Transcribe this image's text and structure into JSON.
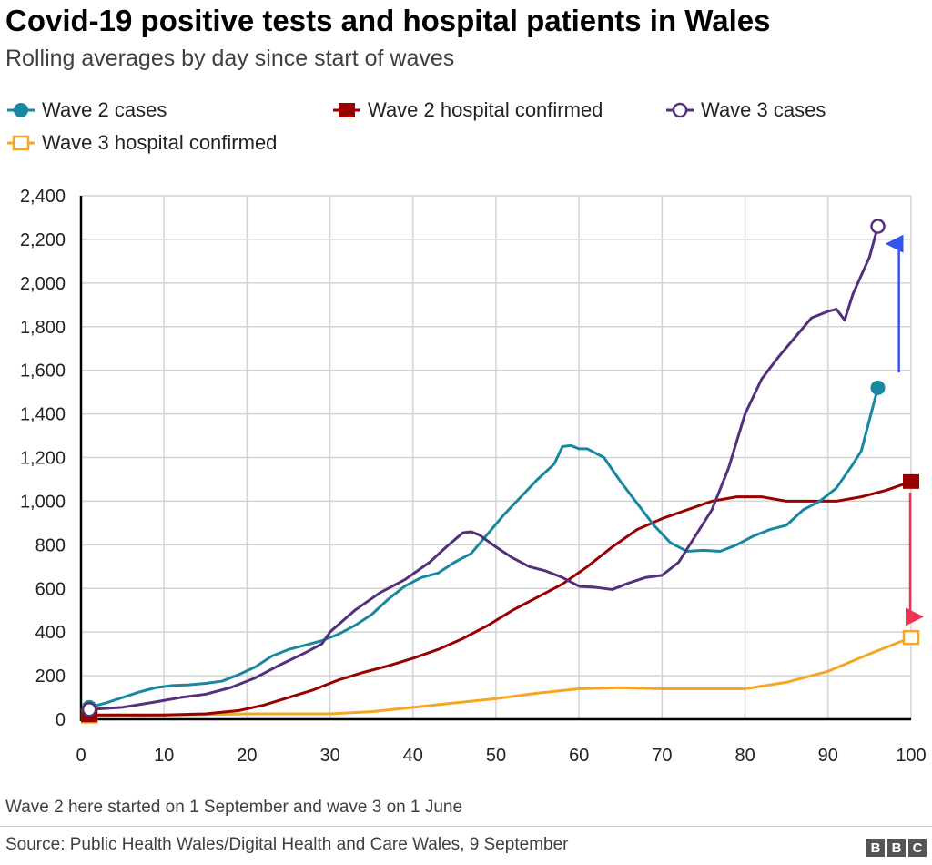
{
  "title": "Covid-19 positive tests and hospital patients in Wales",
  "subtitle": "Rolling averages by day since start of waves",
  "footnote": "Wave 2 here started on 1 September and wave 3 on 1 June",
  "source": "Source: Public Health Wales/Digital Health and Care Wales, 9 September",
  "logo": [
    "B",
    "B",
    "C"
  ],
  "chart_data": {
    "type": "line",
    "title": "Covid-19 positive tests and hospital patients in Wales",
    "subtitle": "Rolling averages by day since start of waves",
    "xlim": [
      0,
      100
    ],
    "ylim": [
      0,
      2400
    ],
    "xticks": [
      0,
      10,
      20,
      30,
      40,
      50,
      60,
      70,
      80,
      90,
      100
    ],
    "yticks": [
      0,
      200,
      400,
      600,
      800,
      1000,
      1200,
      1400,
      1600,
      1800,
      2000,
      2200,
      2400
    ],
    "ytick_labels": [
      "0",
      "200",
      "400",
      "600",
      "800",
      "1,000",
      "1,200",
      "1,400",
      "1,600",
      "1,800",
      "2,000",
      "2,200",
      "2,400"
    ],
    "grid": true,
    "legend_position": "top",
    "series": [
      {
        "name": "Wave 2 cases",
        "color": "#1a87a0",
        "marker": "filled-circle",
        "x": [
          1,
          3,
          5,
          7,
          9,
          11,
          13,
          15,
          17,
          19,
          21,
          23,
          25,
          27,
          29,
          31,
          33,
          35,
          37,
          39,
          41,
          43,
          45,
          47,
          49,
          51,
          53,
          55,
          57,
          58,
          59,
          60,
          61,
          63,
          65,
          67,
          69,
          71,
          73,
          75,
          77,
          79,
          81,
          83,
          85,
          87,
          89,
          91,
          93,
          94,
          96
        ],
        "y": [
          55,
          75,
          100,
          125,
          145,
          155,
          158,
          165,
          175,
          205,
          240,
          290,
          320,
          340,
          360,
          390,
          430,
          480,
          550,
          610,
          650,
          670,
          720,
          760,
          850,
          940,
          1020,
          1100,
          1170,
          1250,
          1255,
          1240,
          1240,
          1200,
          1090,
          990,
          890,
          810,
          770,
          775,
          770,
          800,
          840,
          870,
          890,
          960,
          1000,
          1060,
          1170,
          1230,
          1520
        ]
      },
      {
        "name": "Wave 2 hospital confirmed",
        "color": "#990000",
        "marker": "filled-square",
        "x": [
          1,
          10,
          15,
          19,
          22,
          25,
          28,
          31,
          34,
          37,
          40,
          43,
          46,
          49,
          52,
          55,
          58,
          61,
          64,
          67,
          70,
          73,
          76,
          79,
          82,
          85,
          88,
          91,
          94,
          97,
          100
        ],
        "y": [
          20,
          20,
          25,
          40,
          65,
          100,
          135,
          180,
          215,
          245,
          280,
          320,
          370,
          430,
          500,
          560,
          620,
          700,
          790,
          870,
          920,
          960,
          1000,
          1020,
          1020,
          1000,
          1000,
          1000,
          1020,
          1050,
          1090
        ]
      },
      {
        "name": "Wave 3 cases",
        "color": "#55307a",
        "marker": "open-circle",
        "x": [
          1,
          5,
          9,
          12,
          15,
          18,
          21,
          24,
          27,
          29,
          30,
          33,
          36,
          39,
          42,
          44,
          46,
          47,
          48,
          50,
          52,
          54,
          56,
          58,
          60,
          62,
          64,
          66,
          68,
          70,
          72,
          74,
          76,
          78,
          80,
          82,
          84,
          86,
          88,
          90,
          91,
          92,
          93,
          95,
          96
        ],
        "y": [
          45,
          55,
          80,
          100,
          115,
          145,
          190,
          250,
          305,
          345,
          400,
          500,
          580,
          640,
          720,
          790,
          855,
          860,
          845,
          790,
          740,
          700,
          680,
          650,
          610,
          605,
          595,
          625,
          650,
          660,
          720,
          840,
          960,
          1150,
          1400,
          1560,
          1660,
          1750,
          1840,
          1870,
          1880,
          1830,
          1950,
          2120,
          2260
        ]
      },
      {
        "name": "Wave 3 hospital confirmed",
        "color": "#f5a623",
        "marker": "open-square",
        "x": [
          1,
          20,
          30,
          35,
          40,
          45,
          50,
          55,
          60,
          65,
          70,
          75,
          80,
          85,
          90,
          95,
          100
        ],
        "y": [
          15,
          25,
          25,
          35,
          55,
          75,
          95,
          120,
          140,
          145,
          140,
          140,
          140,
          170,
          220,
          300,
          375
        ]
      }
    ],
    "annotations": [
      {
        "type": "arrow",
        "x": 97,
        "from": 1590,
        "to": 2230,
        "color": "#3355ee"
      },
      {
        "type": "arrow",
        "x": 100,
        "from": 1040,
        "to": 420,
        "color": "#ee3355"
      }
    ]
  }
}
